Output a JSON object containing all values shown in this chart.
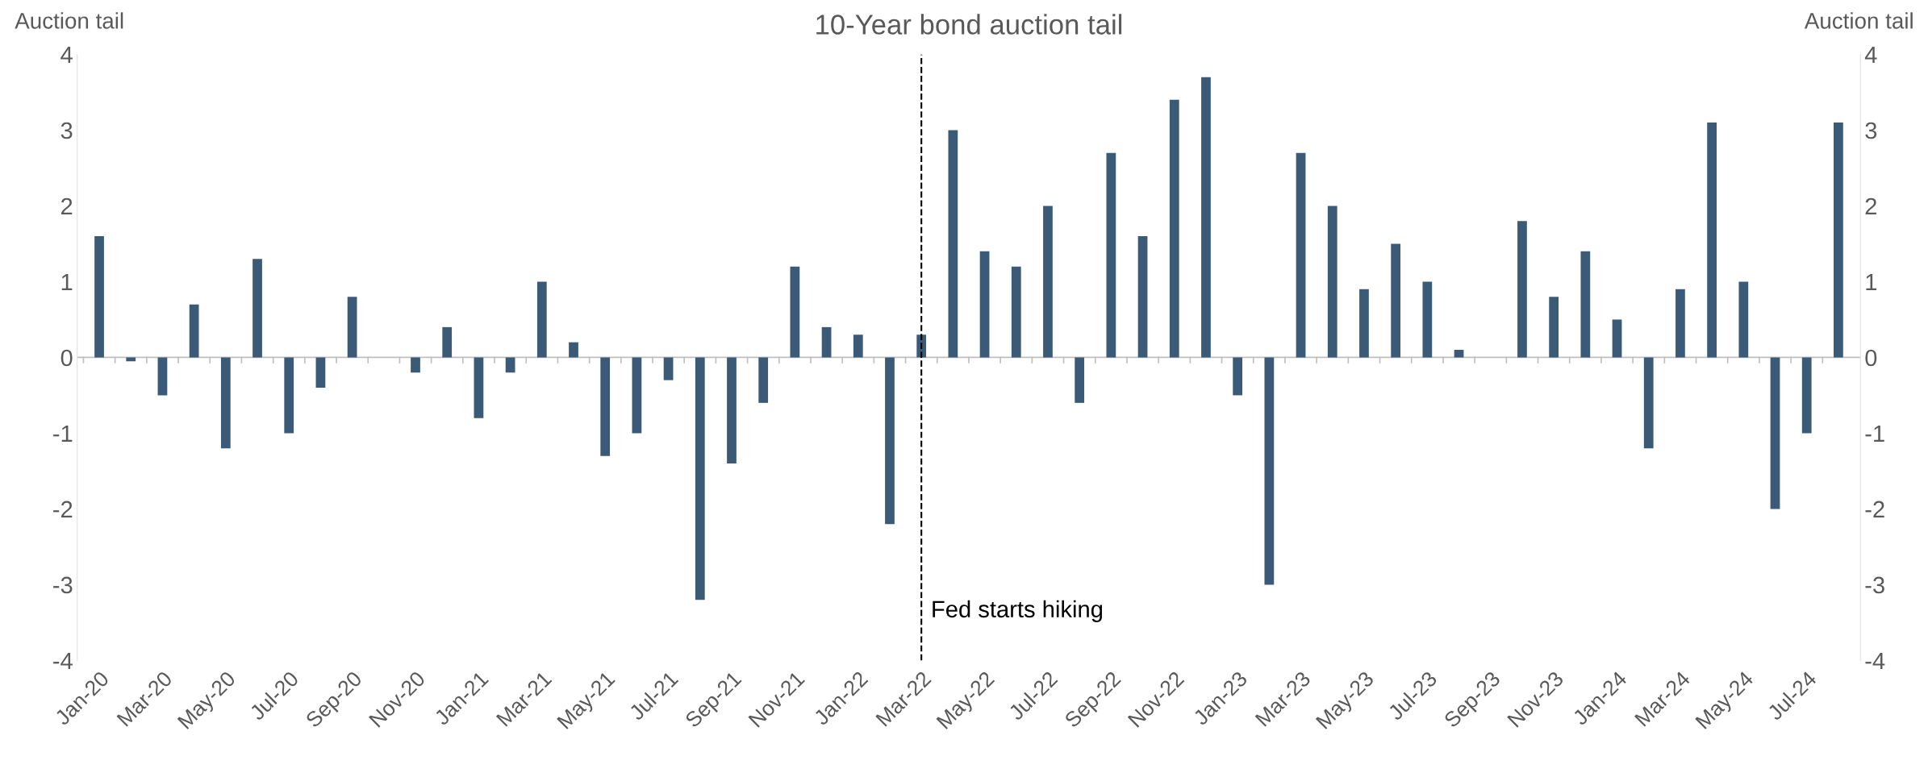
{
  "chart_data": {
    "type": "bar",
    "title": "10-Year bond auction tail",
    "ylabel": "Auction tail",
    "y2label": "Auction tail",
    "categories": [
      "Jan-20",
      null,
      "Mar-20",
      null,
      "May-20",
      null,
      "Jul-20",
      null,
      "Sep-20",
      null,
      "Nov-20",
      null,
      "Jan-21",
      null,
      "Mar-21",
      null,
      "May-21",
      null,
      "Jul-21",
      null,
      "Sep-21",
      null,
      "Nov-21",
      null,
      "Jan-22",
      null,
      "Mar-22",
      null,
      "May-22",
      null,
      "Jul-22",
      null,
      "Sep-22",
      null,
      "Nov-22",
      null,
      "Jan-23",
      null,
      "Mar-23",
      null,
      "May-23",
      null,
      "Jul-23",
      null,
      "Sep-23",
      null,
      "Nov-23",
      null,
      "Jan-24",
      null,
      "Mar-24",
      null,
      "May-24",
      null,
      "Jul-24",
      null
    ],
    "values": [
      1.6,
      -0.05,
      -0.5,
      0.7,
      -1.2,
      1.3,
      -1.0,
      -0.4,
      0.8,
      0,
      -0.2,
      0.4,
      -0.8,
      -0.2,
      1.0,
      0.2,
      -1.3,
      -1.0,
      -0.3,
      -3.2,
      -1.4,
      -0.6,
      1.2,
      0.4,
      0.3,
      -2.2,
      0.3,
      3.0,
      1.4,
      1.2,
      2.0,
      -0.6,
      2.7,
      1.6,
      3.4,
      3.7,
      -0.5,
      -3.0,
      2.7,
      2.0,
      0.9,
      1.5,
      1.0,
      0.1,
      0,
      1.8,
      0.8,
      1.4,
      0.5,
      -1.2,
      0.9,
      3.1,
      1.0,
      -2.0,
      -1.0,
      3.1
    ],
    "color": "#3b5a78",
    "ylim": [
      -4,
      4
    ],
    "yticks": [
      -4,
      -3,
      -2,
      -1,
      0,
      1,
      2,
      3,
      4
    ],
    "y2lim": [
      -4,
      4
    ],
    "y2ticks": [
      -4,
      -3,
      -2,
      -1,
      0,
      1,
      2,
      3,
      4
    ],
    "ref_lines": [
      {
        "axis": "x",
        "value": "Mar-22",
        "label": "Fed starts hiking",
        "color": "#000000",
        "line_style": "dashed"
      }
    ],
    "grid": false,
    "legend": false
  }
}
